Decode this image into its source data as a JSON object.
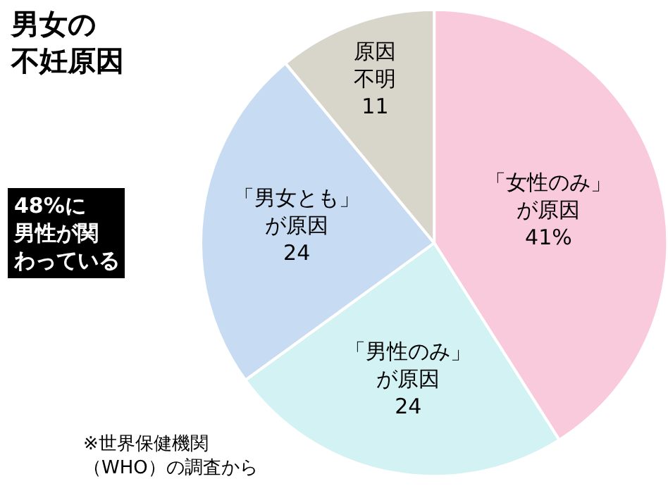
{
  "chart_data": {
    "type": "pie",
    "title": "男女の不妊原因",
    "categories": [
      "「女性のみ」が原因",
      "「男性のみ」が原因",
      "「男女とも」が原因",
      "原因不明"
    ],
    "values": [
      41,
      24,
      24,
      11
    ],
    "value_labels": [
      "41%",
      "24",
      "24",
      "11"
    ],
    "colors": [
      "#f9c9dc",
      "#d3f2f4",
      "#c7dcf2",
      "#d8d6ca"
    ],
    "legend": false,
    "annotations": [
      "48%に男性が関わっている",
      "※世界保健機関（WHO）の調査から"
    ]
  }
}
